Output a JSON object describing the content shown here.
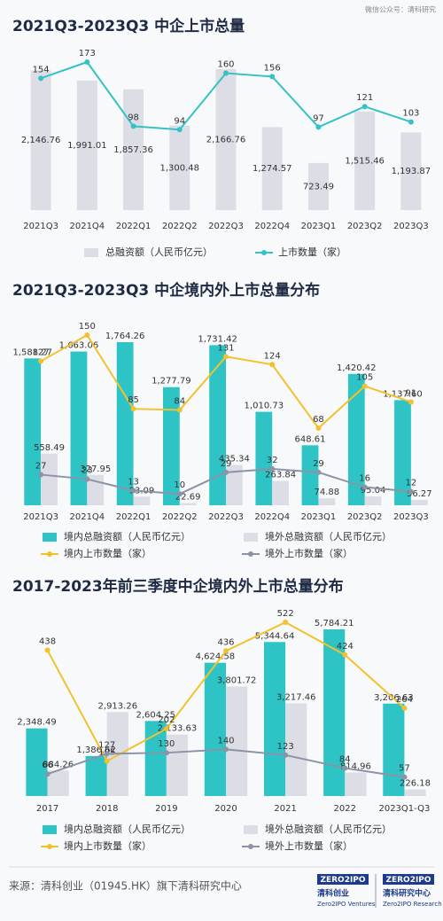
{
  "watermark": "微信公众号：清科研究",
  "chart_data": [
    {
      "type": "bar",
      "title": "2021Q3-2023Q3 中企上市总量",
      "categories": [
        "2021Q3",
        "2021Q4",
        "2022Q1",
        "2022Q2",
        "2022Q3",
        "2022Q4",
        "2023Q1",
        "2023Q2",
        "2023Q3"
      ],
      "series": [
        {
          "name": "总融资额（人民币亿元）",
          "type": "bar",
          "color": "#dcdde5",
          "values": [
            2146.76,
            1991.01,
            1857.36,
            1300.48,
            2166.76,
            1274.57,
            723.49,
            1515.46,
            1193.87
          ],
          "value_labels": [
            "2,146.76",
            "1,991.01",
            "1,857.36",
            "1,300.48",
            "2,166.76",
            "1,274.57",
            "723.49",
            "1,515.46",
            "1,193.87"
          ]
        },
        {
          "name": "上市数量（家）",
          "type": "line",
          "axis": "y2",
          "color": "#35c2c6",
          "values": [
            154,
            173,
            98,
            94,
            160,
            156,
            97,
            121,
            103
          ]
        }
      ]
    },
    {
      "type": "bar",
      "title": "2021Q3-2023Q3 中企境内外上市总量分布",
      "categories": [
        "2021Q3",
        "2021Q4",
        "2022Q1",
        "2022Q2",
        "2022Q3",
        "2022Q4",
        "2023Q1",
        "2023Q2",
        "2023Q3"
      ],
      "series": [
        {
          "name": "境内总融资额（人民币亿元）",
          "type": "bar",
          "color": "#2ec4c6",
          "values": [
            1588.27,
            1663.06,
            1764.26,
            1277.79,
            1731.42,
            1010.73,
            648.61,
            1420.42,
            1137.6
          ],
          "value_labels": [
            "1,588.27",
            "1,663.06",
            "1,764.26",
            "1,277.79",
            "1,731.42",
            "1,010.73",
            "648.61",
            "1,420.42",
            "1,137.60"
          ]
        },
        {
          "name": "境外总融资额（人民币亿元）",
          "type": "bar",
          "color": "#dcdde5",
          "values": [
            558.49,
            327.95,
            93.09,
            22.69,
            435.34,
            263.84,
            74.88,
            95.04,
            56.27
          ],
          "value_labels": [
            "558.49",
            "327.95",
            "93.09",
            "22.69",
            "435.34",
            "263.84",
            "74.88",
            "95.04",
            "56.27"
          ]
        },
        {
          "name": "境内上市数量（家）",
          "type": "line",
          "axis": "y2",
          "color": "#f2c12e",
          "values": [
            127,
            150,
            85,
            84,
            131,
            124,
            68,
            105,
            91
          ]
        },
        {
          "name": "境外上市数量（家）",
          "type": "line",
          "axis": "y2",
          "color": "#8a94a6",
          "values": [
            27,
            23,
            13,
            10,
            29,
            32,
            29,
            16,
            12
          ]
        }
      ]
    },
    {
      "type": "bar",
      "title": "2017-2023年前三季度中企境内外上市总量分布",
      "categories": [
        "2017",
        "2018",
        "2019",
        "2020",
        "2021",
        "2022",
        "2023Q1-Q3"
      ],
      "series": [
        {
          "name": "境内总融资额（人民币亿元）",
          "type": "bar",
          "color": "#2ec4c6",
          "values": [
            2348.49,
            1386.62,
            2604.25,
            4624.58,
            5344.64,
            5784.21,
            3206.63
          ],
          "value_labels": [
            "2,348.49",
            "1,386.62",
            "2,604.25",
            "4,624.58",
            "5,344.64",
            "5,784.21",
            "3,206.63"
          ]
        },
        {
          "name": "境外总融资额（人民币亿元）",
          "type": "bar",
          "color": "#dcdde5",
          "values": [
            884.26,
            2913.26,
            2133.63,
            3801.72,
            3217.46,
            814.96,
            226.18
          ],
          "value_labels": [
            "884.26",
            "2,913.26",
            "2,133.63",
            "3,801.72",
            "3,217.46",
            "814.96",
            "226.18"
          ]
        },
        {
          "name": "境内上市数量（家）",
          "type": "line",
          "axis": "y2",
          "color": "#f2c12e",
          "values": [
            438,
            105,
            202,
            436,
            522,
            424,
            264
          ]
        },
        {
          "name": "境外上市数量（家）",
          "type": "line",
          "axis": "y2",
          "color": "#8a94a6",
          "values": [
            66,
            127,
            130,
            140,
            123,
            84,
            57
          ]
        }
      ]
    }
  ],
  "footer": {
    "source": "来源：清科创业（01945.HK）旗下清科研究中心",
    "logos": [
      {
        "mark": "ZERO2IPO",
        "name": "清科创业",
        "en": "Zero2IPO Ventures"
      },
      {
        "mark": "ZERO2IPO",
        "name": "清科研究中心",
        "en": "Zero2IPO Research"
      }
    ]
  }
}
